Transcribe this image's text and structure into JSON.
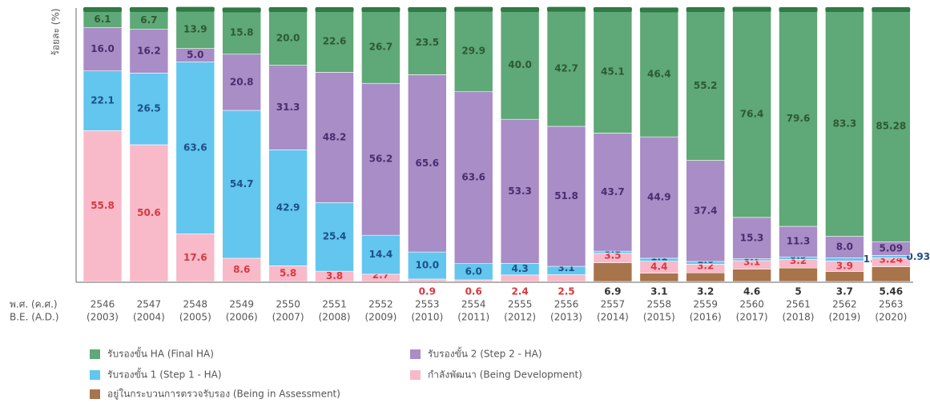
{
  "chart_data": {
    "type": "stacked_bar",
    "y_axis_label": "ร้อยละ (%)",
    "x_axis_label": [
      "พ.ศ. (ค.ศ.)",
      "B.E. (A.D.)"
    ],
    "categories": [
      [
        "2546",
        "(2003)"
      ],
      [
        "2547",
        "(2004)"
      ],
      [
        "2548",
        "(2005)"
      ],
      [
        "2549",
        "(2006)"
      ],
      [
        "2550",
        "(2007)"
      ],
      [
        "2551",
        "(2008)"
      ],
      [
        "2552",
        "(2009)"
      ],
      [
        "2553",
        "(2010)"
      ],
      [
        "2554",
        "(2011)"
      ],
      [
        "2555",
        "(2012)"
      ],
      [
        "2556",
        "(2013)"
      ],
      [
        "2557",
        "(2014)"
      ],
      [
        "2558",
        "(2015)"
      ],
      [
        "2559",
        "(2016)"
      ],
      [
        "2560",
        "(2017)"
      ],
      [
        "2561",
        "(2018)"
      ],
      [
        "2562",
        "(2019)"
      ],
      [
        "2563",
        "(2020)"
      ]
    ],
    "ylim": [
      0,
      100
    ],
    "series": [
      {
        "name": "อยู่ในกระบวนการตรวจรับรอง (Being in Assessment)",
        "color": "#a8744c",
        "label_color": "#333333",
        "values": [
          null,
          null,
          null,
          null,
          null,
          null,
          null,
          null,
          null,
          null,
          null,
          6.9,
          3.1,
          3.2,
          4.6,
          5.0,
          3.7,
          5.46
        ]
      },
      {
        "name": "กำลังพัฒนา (Being Development)",
        "color": "#f8b9c9",
        "label_color": "#d9383f",
        "values": [
          55.8,
          50.6,
          17.6,
          8.6,
          5.8,
          3.8,
          2.7,
          0.9,
          0.6,
          2.4,
          2.5,
          3.5,
          4.4,
          3.2,
          3.1,
          3.2,
          3.9,
          3.24
        ]
      },
      {
        "name": "รับรองขั้น 1 (Step 1 - HA)",
        "color": "#62c6ef",
        "label_color": "#1d4f86",
        "values": [
          22.1,
          26.5,
          63.6,
          54.7,
          42.9,
          25.4,
          14.4,
          10.0,
          6.0,
          4.3,
          3.1,
          0.8,
          1.1,
          1.0,
          0.7,
          0.9,
          1.1,
          0.93
        ],
        "value_labels": [
          "22.1",
          "26.5",
          "63.6",
          "54.7",
          "42.9",
          "25.4",
          "14.4",
          "10.0",
          "6.0",
          "4.3",
          "3.1",
          "0.8",
          "1.1",
          "1.0",
          "0.7",
          "0.9",
          "1.1",
          "0.93"
        ]
      },
      {
        "name": "รับรองขั้น 2 (Step 2 - HA)",
        "color": "#a98dc6",
        "label_color": "#4a2c70",
        "values": [
          16.0,
          16.2,
          5.0,
          20.8,
          31.3,
          48.2,
          56.2,
          65.6,
          63.6,
          53.3,
          51.8,
          43.7,
          44.9,
          37.4,
          15.3,
          11.3,
          8.0,
          5.09
        ],
        "value_labels": [
          "16.0",
          "16.2",
          "5.0",
          "20.8",
          "31.3",
          "48.2",
          "56.2",
          "65.6",
          "63.6",
          "53.3",
          "51.8",
          "43.7",
          "44.9",
          "37.4",
          "15.3",
          "11.3",
          "8.0",
          "5.09"
        ]
      },
      {
        "name": "รับรองขั้น HA (Final HA)",
        "color": "#5fa877",
        "label_color": "#2c5a33",
        "values": [
          6.1,
          6.7,
          13.9,
          15.8,
          20.0,
          22.6,
          26.7,
          23.5,
          29.9,
          40.0,
          42.7,
          45.1,
          46.4,
          55.2,
          76.4,
          79.6,
          83.3,
          85.28
        ],
        "value_labels": [
          "6.1",
          "6.7",
          "13.9",
          "15.8",
          "20.0",
          "22.6",
          "26.7",
          "23.5",
          "29.9",
          "40.0",
          "42.7",
          "45.1",
          "46.4",
          "55.2",
          "76.4",
          "79.6",
          "83.3",
          "85.28"
        ]
      }
    ]
  }
}
